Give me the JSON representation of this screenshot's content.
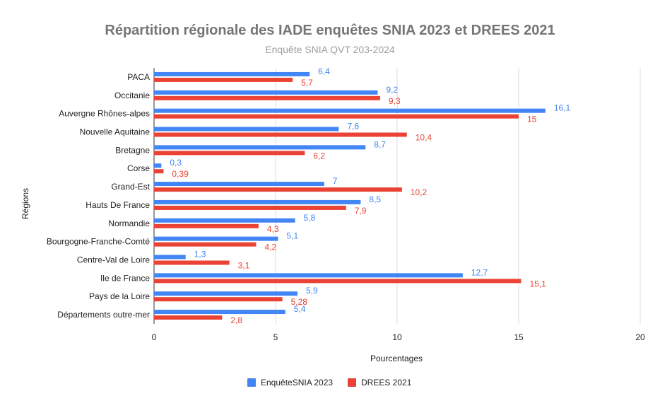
{
  "chart_data": {
    "type": "bar",
    "orientation": "horizontal",
    "title": "Répartition régionale des IADE enquêtes SNIA 2023 et DREES 2021",
    "subtitle": "Enquête SNIA QVT 203-2024",
    "xlabel": "Pourcentages",
    "ylabel": "Régions",
    "xlim": [
      0,
      20
    ],
    "xticks": [
      0,
      5,
      10,
      15,
      20
    ],
    "grid": true,
    "legend_position": "bottom",
    "categories": [
      "PACA",
      "Occitanie",
      "Auvergne Rhônes-alpes",
      "Nouvelle Aquitaine",
      "Bretagne",
      "Corse",
      "Grand-Est",
      "Hauts De France",
      "Normandie",
      "Bourgogne-Franche-Comté",
      "Centre-Val de Loire",
      "Ile de France",
      "Pays de la Loire",
      "Départements outre-mer"
    ],
    "series": [
      {
        "name": "EnquêteSNIA 2023",
        "color": "#4285f4",
        "values": [
          6.4,
          9.2,
          16.1,
          7.6,
          8.7,
          0.3,
          7,
          8.5,
          5.8,
          5.1,
          1.3,
          12.7,
          5.9,
          5.4
        ],
        "labels": [
          "6,4",
          "9,2",
          "16,1",
          "7,6",
          "8,7",
          "0,3",
          "7",
          "8,5",
          "5,8",
          "5,1",
          "1,3",
          "12,7",
          "5,9",
          "5,4"
        ]
      },
      {
        "name": "DREES 2021",
        "color": "#ea4335",
        "values": [
          5.7,
          9.3,
          15,
          10.4,
          6.2,
          0.39,
          10.2,
          7.9,
          4.3,
          4.2,
          3.1,
          15.1,
          5.28,
          2.8
        ],
        "labels": [
          "5,7",
          "9,3",
          "15",
          "10,4",
          "6,2",
          "0,39",
          "10,2",
          "7,9",
          "4,3",
          "4,2",
          "3,1",
          "15,1",
          "5,28",
          "2,8"
        ]
      }
    ]
  }
}
